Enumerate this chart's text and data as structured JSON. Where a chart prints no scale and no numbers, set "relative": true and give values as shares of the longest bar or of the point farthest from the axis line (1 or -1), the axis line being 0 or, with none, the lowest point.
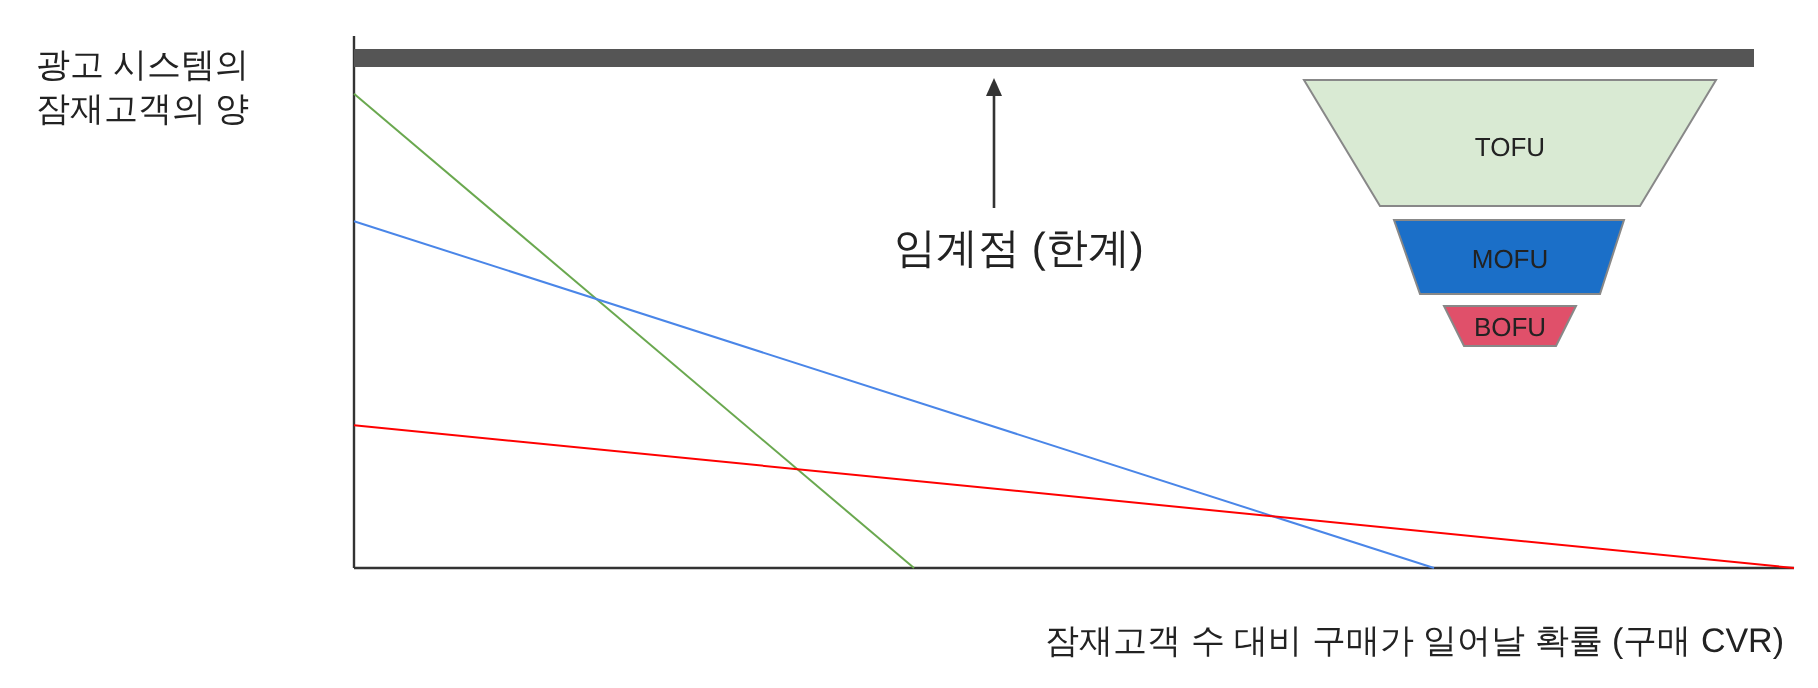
{
  "chart_data": {
    "type": "line",
    "relative": true,
    "xlabel": "잠재고객 수 대비 구매가 일어날 확률 (구매 CVR)",
    "ylabel": "광고 시스템의\n잠재고객의 양",
    "grid": false,
    "legend": false,
    "marker": "none",
    "line_style": "solid",
    "categories": [
      null,
      null,
      null,
      null,
      null,
      null,
      null,
      null,
      null,
      null,
      null,
      null,
      null,
      null,
      null,
      null,
      null,
      null,
      null,
      null,
      null,
      null,
      null,
      null,
      null,
      null,
      null,
      null,
      null,
      null,
      null,
      null,
      null,
      null,
      null,
      null,
      null
    ],
    "series": [
      {
        "color": "#555555",
        "values": [
          1,
          null,
          null,
          null,
          null,
          null,
          null,
          null,
          null,
          null,
          null,
          null,
          null,
          null,
          null,
          null,
          null,
          null,
          null,
          null,
          null,
          null,
          null,
          null,
          null,
          null,
          null,
          null,
          null,
          null,
          null,
          null,
          null,
          null,
          null,
          1,
          null
        ]
      },
      {
        "color": "#6aa84f",
        "values": [
          0.93,
          null,
          null,
          null,
          null,
          null,
          null,
          null,
          null,
          null,
          null,
          null,
          null,
          null,
          0,
          null,
          null,
          null,
          null,
          null,
          null,
          null,
          null,
          null,
          null,
          null,
          null,
          null,
          null,
          null,
          null,
          null,
          null,
          null,
          null,
          null,
          null
        ]
      },
      {
        "color": "#4a86e8",
        "values": [
          0.68,
          null,
          null,
          null,
          null,
          null,
          null,
          null,
          null,
          null,
          null,
          null,
          null,
          null,
          null,
          null,
          null,
          null,
          null,
          null,
          null,
          null,
          null,
          null,
          null,
          null,
          null,
          0,
          null,
          null,
          null,
          null,
          null,
          null,
          null,
          null,
          null
        ]
      },
      {
        "color": "#ff0000",
        "values": [
          0.28,
          null,
          null,
          null,
          null,
          null,
          null,
          null,
          null,
          null,
          null,
          null,
          null,
          null,
          null,
          null,
          null,
          null,
          null,
          null,
          null,
          null,
          null,
          null,
          null,
          null,
          null,
          null,
          null,
          null,
          null,
          null,
          null,
          null,
          null,
          null,
          0
        ]
      }
    ],
    "annotations": [
      "임계점 (한계)",
      "TOFU",
      "MOFU",
      "BOFU"
    ]
  }
}
